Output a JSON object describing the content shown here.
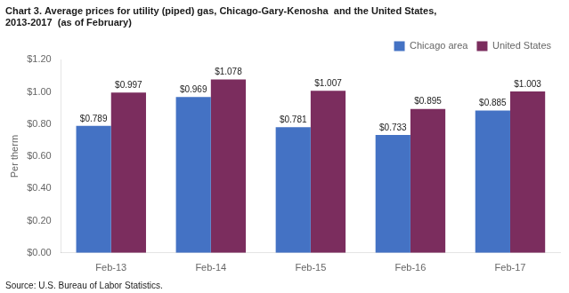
{
  "chart_data": {
    "type": "bar",
    "title": [
      "Chart 3. Average prices for utility (piped) gas, Chicago-Gary-Kenosha  and the United States,",
      "2013-2017  (as of February)"
    ],
    "ylabel": "Per therm",
    "annotations": [
      "Source: U.S. Bureau of Labor Statistics."
    ],
    "categories": [
      "Feb-13",
      "Feb-14",
      "Feb-15",
      "Feb-16",
      "Feb-17"
    ],
    "series": [
      {
        "name": "Chicago area",
        "color": "#4472C4",
        "values": [
          0.789,
          0.969,
          0.781,
          0.733,
          0.885
        ],
        "value_labels": [
          "$0.789",
          "$0.969",
          "$0.781",
          "$0.733",
          "$0.885"
        ]
      },
      {
        "name": "United States",
        "color": "#7B2D5E",
        "values": [
          0.997,
          1.078,
          1.007,
          0.895,
          1.003
        ],
        "value_labels": [
          "$0.997",
          "$1.078",
          "$1.007",
          "$0.895",
          "$1.003"
        ]
      }
    ],
    "ylim": [
      0,
      1.2
    ],
    "yticks": [
      {
        "value": 0,
        "label": "$0.00"
      },
      {
        "value": 0.2,
        "label": "$0.20"
      },
      {
        "value": 0.4,
        "label": "$0.40"
      },
      {
        "value": 0.6,
        "label": "$0.60"
      },
      {
        "value": 0.8,
        "label": "$0.80"
      },
      {
        "value": 1.0,
        "label": "$1.00"
      },
      {
        "value": 1.2,
        "label": "$1.20"
      }
    ],
    "data_labels": true,
    "legend": "upper right",
    "grid": false
  }
}
